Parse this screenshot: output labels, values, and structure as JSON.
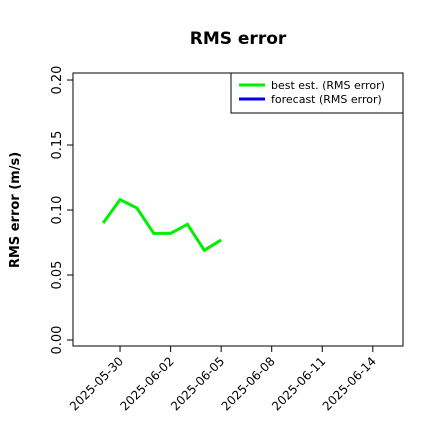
{
  "chart_data": {
    "type": "line",
    "title": "RMS error",
    "y_label": "RMS error (m/s)",
    "x": [
      "2025-05-29",
      "2025-05-30",
      "2025-05-31",
      "2025-06-01",
      "2025-06-02",
      "2025-06-03",
      "2025-06-04",
      "2025-06-05"
    ],
    "series": [
      {
        "name": "best est. (RMS error)",
        "color": "#00ee00",
        "values": [
          0.09,
          0.108,
          0.1015,
          0.082,
          0.082,
          0.089,
          0.069,
          0.077
        ]
      },
      {
        "name": "forecast (RMS error)",
        "color": "#0000ee",
        "values": [
          null,
          null,
          null,
          null,
          null,
          null,
          null,
          null
        ]
      }
    ],
    "xlim": [
      "2025-05-27T05:00:00Z",
      "2025-06-15T19:00:00Z"
    ],
    "xticks": [
      "2025-05-30",
      "2025-06-02",
      {
        "value": "2025-06-05",
        "label": "2025-06-05",
        "color": "#228b22"
      },
      "2025-06-08",
      "2025-06-11",
      "2025-06-14"
    ],
    "ylim": [
      -0.0046,
      0.2054
    ],
    "yticks": [
      {
        "value": 0,
        "label": "0.00"
      },
      0.05,
      {
        "value": 0.1,
        "label": "0.10"
      },
      0.15,
      {
        "value": 0.2,
        "label": "0.20"
      }
    ],
    "legend": "upper right",
    "grid": false
  }
}
